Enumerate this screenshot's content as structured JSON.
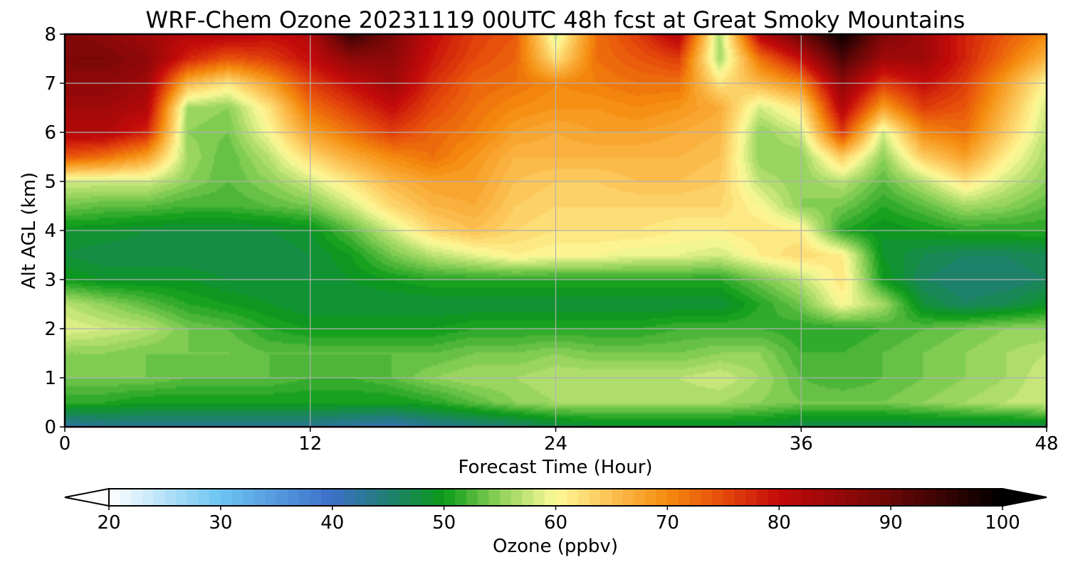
{
  "chart_data": {
    "type": "heatmap",
    "title": "WRF-Chem Ozone  20231119 00UTC 48h fcst at Great Smoky Mountains",
    "xlabel": "Forecast Time (Hour)",
    "ylabel": "Alt AGL (km)",
    "xlim": [
      0,
      48
    ],
    "ylim": [
      0,
      8
    ],
    "xticks": [
      0,
      12,
      24,
      36,
      48
    ],
    "yticks": [
      0,
      1,
      2,
      3,
      4,
      5,
      6,
      7,
      8
    ],
    "grid": true,
    "colorbar": {
      "label": "Ozone  (ppbv)",
      "min": 20,
      "max": 100,
      "ticks": [
        20,
        30,
        40,
        50,
        60,
        70,
        80,
        90,
        100
      ],
      "extend": "both",
      "stops": [
        {
          "value": 20,
          "color": "#ffffff"
        },
        {
          "value": 30,
          "color": "#6cc4f2"
        },
        {
          "value": 40,
          "color": "#3d6fc9"
        },
        {
          "value": 45,
          "color": "#1f7f72"
        },
        {
          "value": 50,
          "color": "#0b9a18"
        },
        {
          "value": 55,
          "color": "#8ed15a"
        },
        {
          "value": 60,
          "color": "#fdfa98"
        },
        {
          "value": 65,
          "color": "#fcc052"
        },
        {
          "value": 70,
          "color": "#f58b0d"
        },
        {
          "value": 75,
          "color": "#e5490b"
        },
        {
          "value": 80,
          "color": "#c40a0a"
        },
        {
          "value": 90,
          "color": "#6a0707"
        },
        {
          "value": 100,
          "color": "#000000"
        }
      ]
    },
    "x": [
      0,
      2,
      4,
      6,
      8,
      10,
      12,
      14,
      16,
      18,
      20,
      22,
      24,
      26,
      28,
      30,
      32,
      34,
      36,
      38,
      40,
      42,
      44,
      46,
      48
    ],
    "y": [
      0,
      0.5,
      1,
      1.5,
      2,
      2.5,
      3,
      3.5,
      4,
      4.5,
      5,
      5.5,
      6,
      6.5,
      7,
      7.5,
      8
    ],
    "z": [
      [
        42,
        43,
        43,
        43,
        43,
        43,
        43,
        42,
        41,
        43,
        44,
        45,
        47,
        48,
        48,
        48,
        48,
        48,
        47,
        47,
        47,
        47,
        47,
        47,
        47
      ],
      [
        51,
        51,
        50,
        50,
        50,
        50,
        50,
        50,
        50,
        51,
        53,
        55,
        56,
        56,
        56,
        56,
        56,
        55,
        54,
        54,
        54,
        55,
        56,
        57,
        58
      ],
      [
        54,
        54,
        54,
        53,
        53,
        53,
        52,
        52,
        53,
        55,
        56,
        56,
        57,
        57,
        57,
        57,
        58,
        56,
        53,
        52,
        53,
        54,
        55,
        56,
        58
      ],
      [
        55,
        55,
        54,
        54,
        54,
        53,
        53,
        53,
        53,
        53,
        54,
        54,
        55,
        54,
        54,
        54,
        55,
        55,
        52,
        52,
        53,
        54,
        55,
        56,
        57
      ],
      [
        59,
        58,
        57,
        54,
        53,
        51,
        50,
        50,
        50,
        50,
        51,
        51,
        51,
        51,
        51,
        52,
        52,
        52,
        51,
        51,
        52,
        53,
        54,
        55,
        55
      ],
      [
        57,
        55,
        53,
        51,
        50,
        49,
        48,
        48,
        48,
        48,
        48,
        48,
        48,
        48,
        48,
        48,
        48,
        51,
        54,
        60,
        56,
        48,
        46,
        47,
        49
      ],
      [
        50,
        49,
        49,
        49,
        48,
        48,
        48,
        49,
        50,
        51,
        51,
        51,
        51,
        51,
        51,
        51,
        51,
        54,
        57,
        62,
        50,
        46,
        45,
        45,
        46
      ],
      [
        48,
        47,
        47,
        47,
        47,
        47,
        48,
        50,
        54,
        57,
        59,
        61,
        60,
        60,
        59,
        59,
        58,
        61,
        63,
        61,
        49,
        47,
        46,
        46,
        47
      ],
      [
        49,
        49,
        48,
        48,
        48,
        48,
        49,
        53,
        58,
        63,
        65,
        63,
        62,
        62,
        62,
        61,
        61,
        62,
        61,
        51,
        49,
        50,
        51,
        51,
        51
      ],
      [
        54,
        53,
        53,
        52,
        52,
        53,
        54,
        58,
        63,
        66,
        67,
        64,
        63,
        63,
        63,
        63,
        63,
        60,
        55,
        54,
        51,
        53,
        56,
        55,
        53
      ],
      [
        58,
        58,
        58,
        55,
        53,
        55,
        58,
        62,
        66,
        68,
        68,
        65,
        64,
        64,
        65,
        65,
        64,
        57,
        55,
        57,
        53,
        57,
        62,
        58,
        55
      ],
      [
        74,
        72,
        68,
        56,
        53,
        57,
        63,
        67,
        70,
        72,
        69,
        66,
        66,
        66,
        66,
        66,
        65,
        55,
        55,
        64,
        55,
        64,
        68,
        61,
        56
      ],
      [
        82,
        82,
        78,
        55,
        54,
        60,
        68,
        72,
        76,
        73,
        71,
        68,
        67,
        68,
        68,
        67,
        66,
        55,
        58,
        76,
        58,
        70,
        72,
        64,
        57
      ],
      [
        84,
        84,
        82,
        56,
        55,
        62,
        72,
        76,
        80,
        75,
        72,
        70,
        69,
        69,
        70,
        69,
        67,
        58,
        62,
        82,
        68,
        76,
        74,
        66,
        58
      ],
      [
        86,
        86,
        84,
        66,
        62,
        68,
        76,
        80,
        84,
        77,
        73,
        72,
        70,
        71,
        72,
        72,
        62,
        66,
        70,
        86,
        76,
        80,
        76,
        68,
        60
      ],
      [
        88,
        88,
        86,
        78,
        74,
        76,
        80,
        86,
        86,
        79,
        75,
        73,
        62,
        72,
        74,
        76,
        56,
        72,
        80,
        93,
        84,
        84,
        78,
        72,
        66
      ],
      [
        88,
        86,
        84,
        82,
        82,
        80,
        82,
        95,
        88,
        80,
        76,
        74,
        58,
        72,
        76,
        82,
        56,
        82,
        90,
        99,
        88,
        84,
        78,
        74,
        70
      ]
    ]
  }
}
